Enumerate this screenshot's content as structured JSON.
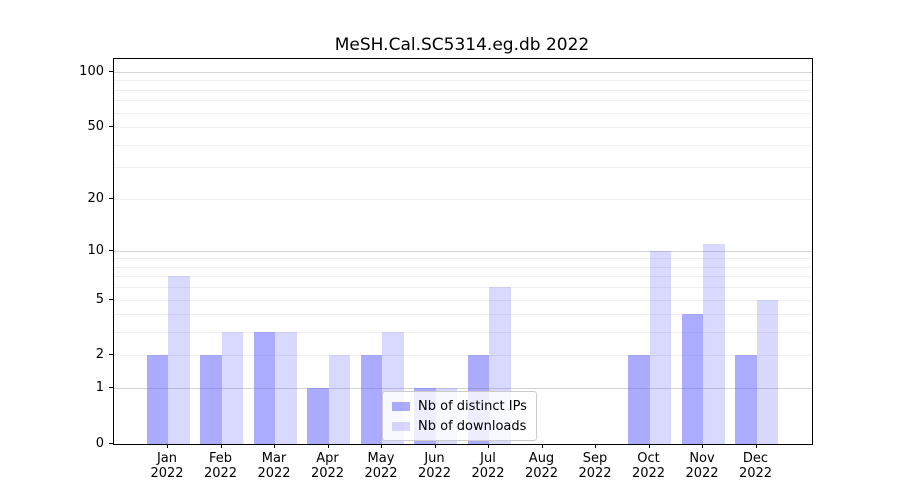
{
  "chart_data": {
    "type": "bar",
    "title": "MeSH.Cal.SC5314.eg.db 2022",
    "categories": [
      "Jan",
      "Feb",
      "Mar",
      "Apr",
      "May",
      "Jun",
      "Jul",
      "Aug",
      "Sep",
      "Oct",
      "Nov",
      "Dec"
    ],
    "year_label": "2022",
    "series": [
      {
        "name": "Nb of distinct IPs",
        "color": "rgba(102,102,255,0.55)",
        "values": [
          2,
          2,
          3,
          1,
          2,
          1,
          2,
          0,
          0,
          2,
          4,
          2
        ]
      },
      {
        "name": "Nb of downloads",
        "color": "rgba(102,102,255,0.25)",
        "values": [
          7,
          3,
          3,
          2,
          3,
          1,
          6,
          0,
          0,
          10,
          11,
          5
        ]
      }
    ],
    "y_ticks": [
      0,
      1,
      2,
      5,
      10,
      20,
      50,
      100
    ],
    "y_minor_gridlines": [
      2,
      3,
      4,
      5,
      6,
      7,
      8,
      9,
      20,
      30,
      40,
      50,
      60,
      70,
      80,
      90
    ],
    "y_major_gridlines": [
      1,
      10,
      100
    ],
    "y_scale": "log1p",
    "ylim": [
      0,
      117.6
    ],
    "xlabel": "",
    "ylabel": "",
    "grid": true,
    "legend_position": "lower-center",
    "colors": {
      "axis": "#000000",
      "major_grid": "#d3d3d3",
      "minor_grid": "#efefef",
      "legend_border": "#cccccc"
    }
  }
}
